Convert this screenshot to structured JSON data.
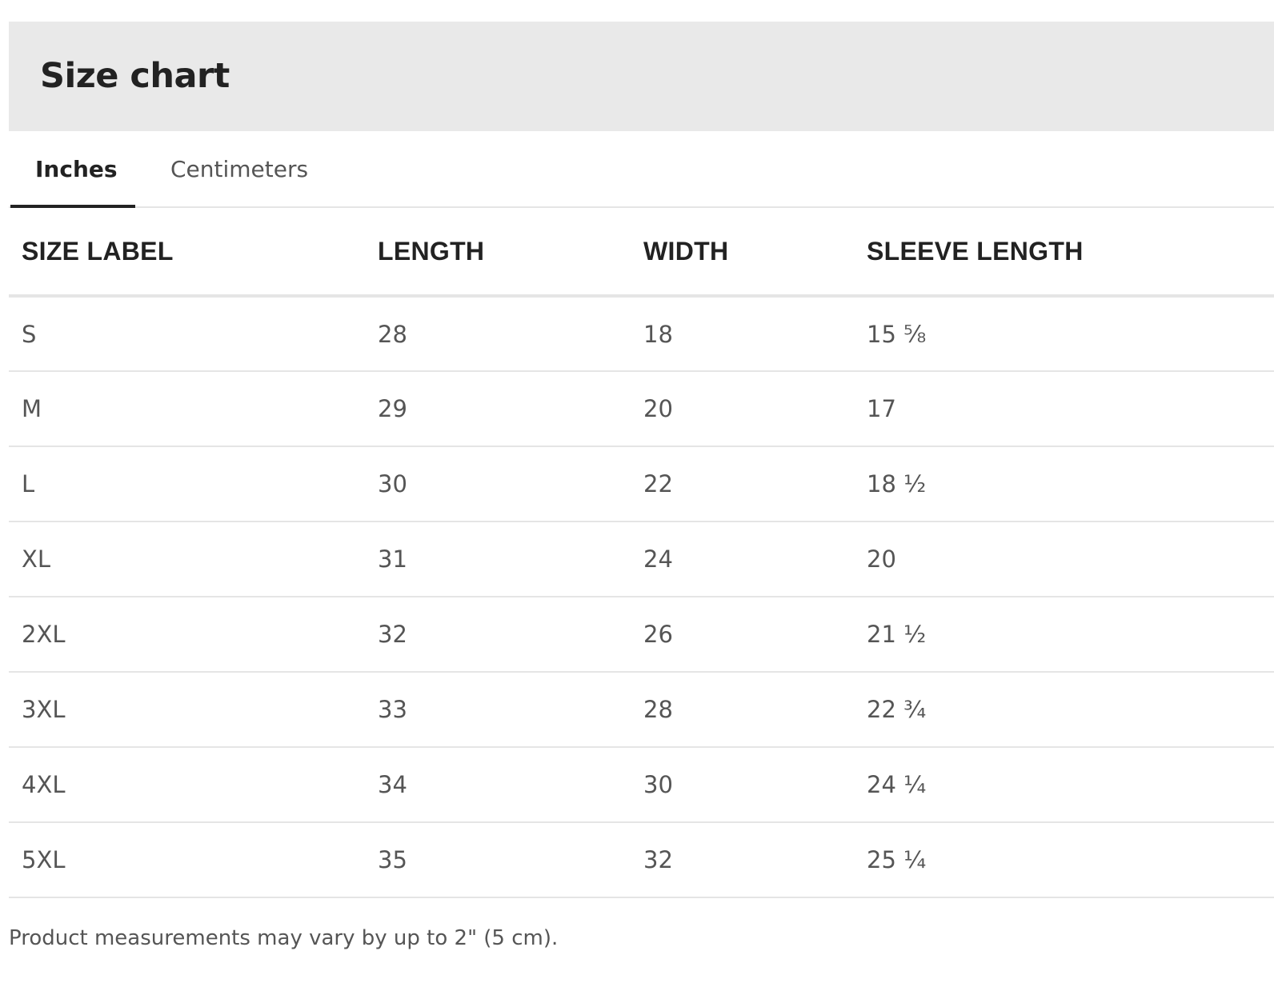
{
  "header": {
    "title": "Size chart"
  },
  "tabs": [
    {
      "label": "Inches",
      "active": true
    },
    {
      "label": "Centimeters",
      "active": false
    }
  ],
  "table": {
    "columns": [
      "SIZE LABEL",
      "LENGTH",
      "WIDTH",
      "SLEEVE LENGTH"
    ],
    "rows": [
      [
        "S",
        "28",
        "18",
        "15 ⅝"
      ],
      [
        "M",
        "29",
        "20",
        "17"
      ],
      [
        "L",
        "30",
        "22",
        "18 ½"
      ],
      [
        "XL",
        "31",
        "24",
        "20"
      ],
      [
        "2XL",
        "32",
        "26",
        "21 ½"
      ],
      [
        "3XL",
        "33",
        "28",
        "22 ¾"
      ],
      [
        "4XL",
        "34",
        "30",
        "24 ¼"
      ],
      [
        "5XL",
        "35",
        "32",
        "25 ¼"
      ]
    ]
  },
  "footer": {
    "note": "Product measurements may vary by up to 2\" (5 cm)."
  },
  "colors": {
    "header_bg": "#e9e9e9",
    "text_dark": "#222222",
    "text_muted": "#555555",
    "divider": "#e5e5e5"
  }
}
